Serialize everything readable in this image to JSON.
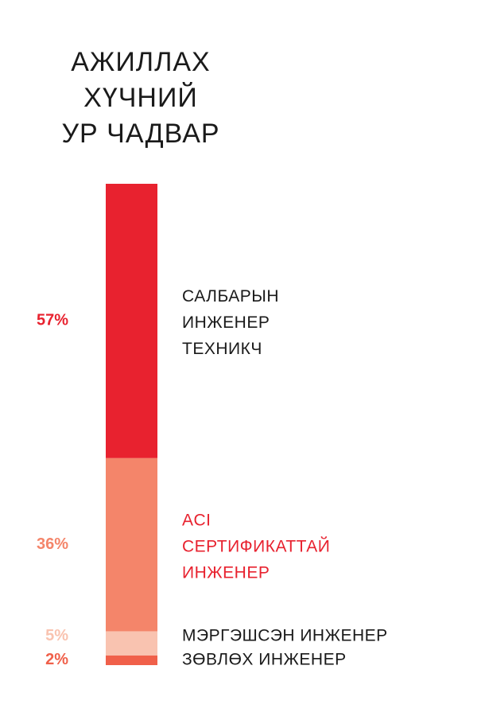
{
  "chart_data": {
    "type": "stacked_bar",
    "title": [
      "АЖИЛЛАХ",
      "ХҮЧНИЙ",
      "УР ЧАДВАР"
    ],
    "categories": [
      [
        "САЛБАРЫН",
        "ИНЖЕНЕР",
        "ТЕХНИКЧ"
      ],
      [
        "ACI",
        "СЕРТИФИКАТТАЙ",
        "ИНЖЕНЕР"
      ],
      [
        "МЭРГЭШСЭН ИНЖЕНЕР"
      ],
      [
        "ЗӨВЛӨХ ИНЖЕНЕР"
      ]
    ],
    "values": [
      57,
      36,
      5,
      2
    ],
    "value_labels": [
      "57%",
      "36%",
      "5%",
      "2%"
    ],
    "colors": [
      "#e8222f",
      "#f4856a",
      "#f9c3b0",
      "#f0604a"
    ],
    "category_colors": [
      "#1a1a1a",
      "#e8222f",
      "#1a1a1a",
      "#1a1a1a"
    ]
  }
}
